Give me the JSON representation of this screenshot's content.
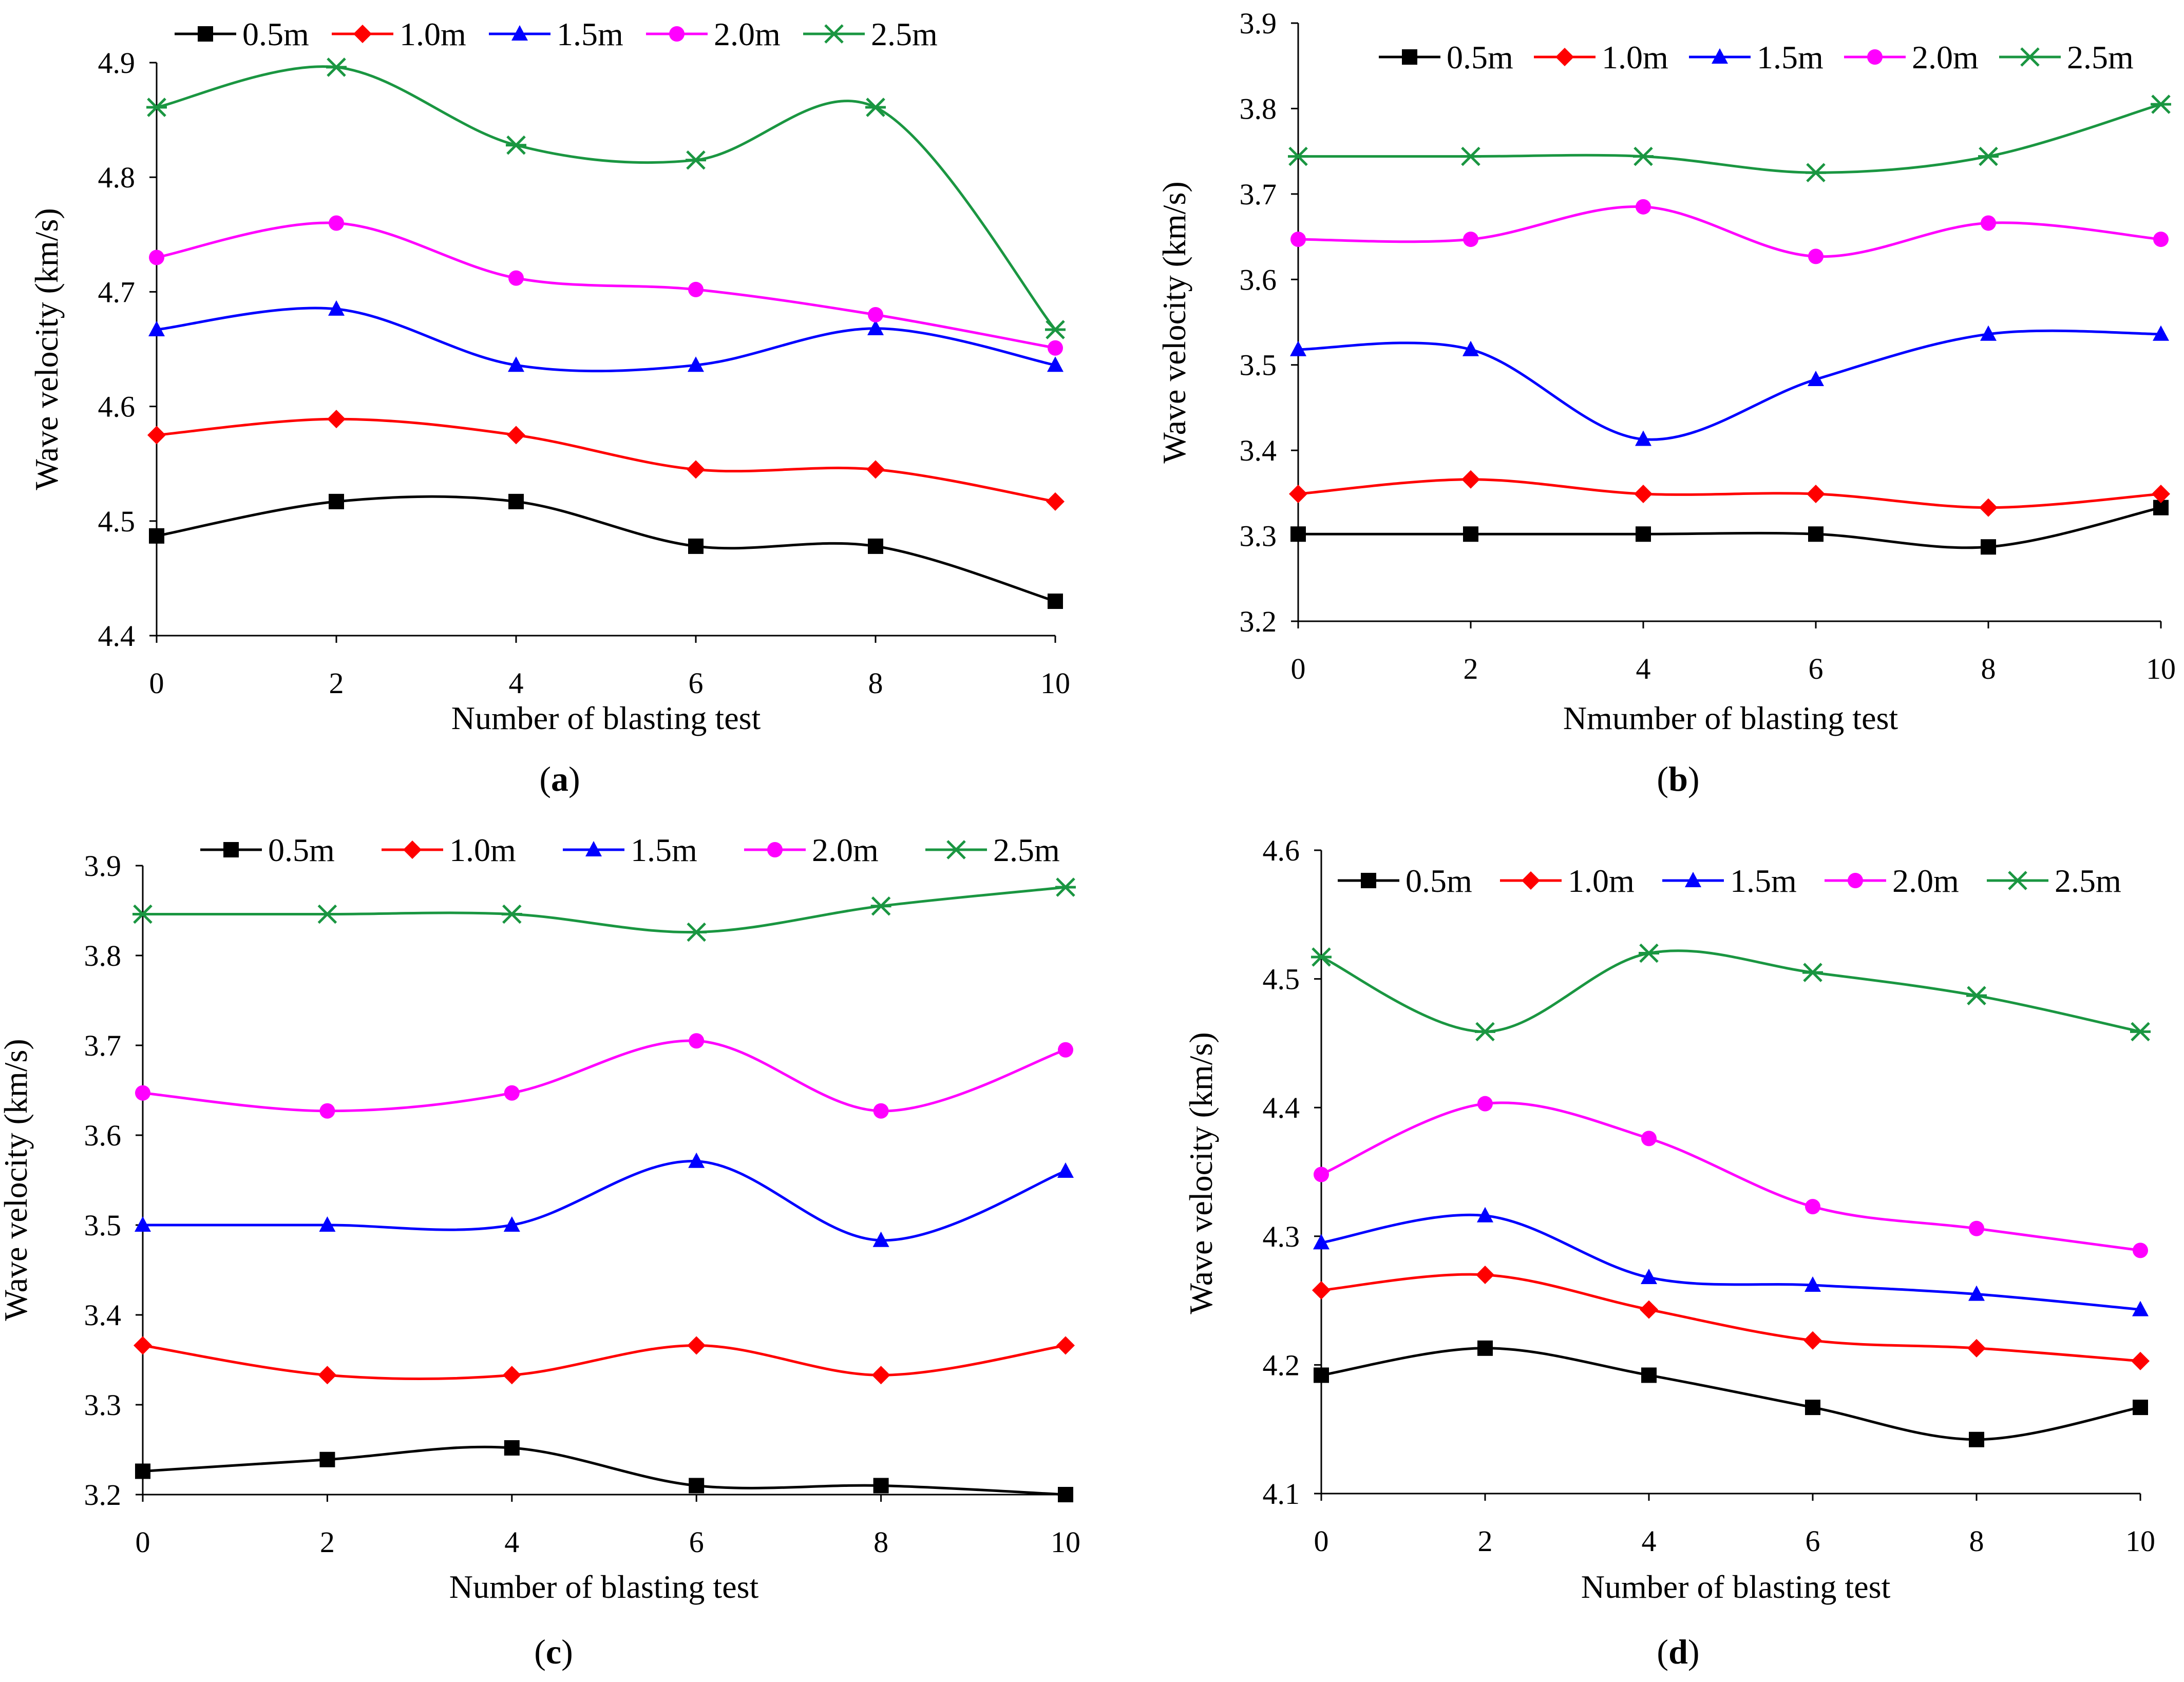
{
  "chart_data": [
    {
      "panel": "a",
      "type": "line",
      "caption": "(a)",
      "caption_letter": "a",
      "xlabel": "Number of blasting test",
      "ylabel": "Wave velocity (km/s)",
      "xlim": [
        0,
        10
      ],
      "ylim": [
        4.4,
        4.9
      ],
      "xticks": [
        0,
        2,
        4,
        6,
        8,
        10
      ],
      "xtick_labels": [
        "0",
        "2",
        "4",
        "6",
        "8",
        "10"
      ],
      "yticks": [
        4.4,
        4.5,
        4.6,
        4.7,
        4.8,
        4.9
      ],
      "ytick_labels": [
        "4.4",
        "4.5",
        "4.6",
        "4.7",
        "4.8",
        "4.9"
      ],
      "x": [
        0,
        2,
        4,
        6,
        8,
        10
      ],
      "legend_position": "top",
      "series": [
        {
          "name": "0.5m",
          "color": "#000000",
          "marker": "square",
          "values": [
            4.487,
            4.517,
            4.517,
            4.478,
            4.478,
            4.43
          ]
        },
        {
          "name": "1.0m",
          "color": "#ff0000",
          "marker": "diamond",
          "values": [
            4.575,
            4.589,
            4.575,
            4.545,
            4.545,
            4.517
          ]
        },
        {
          "name": "1.5m",
          "color": "#0000ff",
          "marker": "triangle",
          "values": [
            4.667,
            4.685,
            4.636,
            4.636,
            4.668,
            4.636
          ]
        },
        {
          "name": "2.0m",
          "color": "#ff00ff",
          "marker": "circle",
          "values": [
            4.73,
            4.76,
            4.712,
            4.702,
            4.68,
            4.651
          ]
        },
        {
          "name": "2.5m",
          "color": "#1a9641",
          "marker": "star",
          "values": [
            4.861,
            4.896,
            4.828,
            4.815,
            4.861,
            4.667
          ]
        }
      ]
    },
    {
      "panel": "b",
      "type": "line",
      "caption": "(b)",
      "caption_letter": "b",
      "xlabel": "Nmumber of blasting test",
      "ylabel": "Wave velocity (km/s)",
      "xlim": [
        0,
        10
      ],
      "ylim": [
        3.2,
        3.9
      ],
      "xticks": [
        0,
        2,
        4,
        6,
        8,
        10
      ],
      "xtick_labels": [
        "0",
        "2",
        "4",
        "6",
        "8",
        "10"
      ],
      "yticks": [
        3.2,
        3.3,
        3.4,
        3.5,
        3.6,
        3.7,
        3.8,
        3.9
      ],
      "ytick_labels": [
        "3.2",
        "3.3",
        "3.4",
        "3.5",
        "3.6",
        "3.7",
        "3.8",
        "3.9"
      ],
      "x": [
        0,
        2,
        4,
        6,
        8,
        10
      ],
      "legend_position": "top",
      "series": [
        {
          "name": "0.5m",
          "color": "#000000",
          "marker": "square",
          "values": [
            3.302,
            3.302,
            3.302,
            3.302,
            3.287,
            3.333
          ]
        },
        {
          "name": "1.0m",
          "color": "#ff0000",
          "marker": "diamond",
          "values": [
            3.349,
            3.366,
            3.349,
            3.349,
            3.333,
            3.349
          ]
        },
        {
          "name": "1.5m",
          "color": "#0000ff",
          "marker": "triangle",
          "values": [
            3.518,
            3.518,
            3.413,
            3.483,
            3.536,
            3.536
          ]
        },
        {
          "name": "2.0m",
          "color": "#ff00ff",
          "marker": "circle",
          "values": [
            3.647,
            3.647,
            3.685,
            3.627,
            3.666,
            3.647
          ]
        },
        {
          "name": "2.5m",
          "color": "#1a9641",
          "marker": "star",
          "values": [
            3.744,
            3.744,
            3.744,
            3.725,
            3.744,
            3.805
          ]
        }
      ]
    },
    {
      "panel": "c",
      "type": "line",
      "caption": "(c)",
      "caption_letter": "c",
      "xlabel": "Number of blasting test",
      "ylabel": "Wave velocity (km/s)",
      "xlim": [
        0,
        10
      ],
      "ylim": [
        3.2,
        3.9
      ],
      "xticks": [
        0,
        2,
        4,
        6,
        8,
        10
      ],
      "xtick_labels": [
        "0",
        "2",
        "4",
        "6",
        "8",
        "10"
      ],
      "yticks": [
        3.2,
        3.3,
        3.4,
        3.5,
        3.6,
        3.7,
        3.8,
        3.9
      ],
      "ytick_labels": [
        "3.2",
        "3.3",
        "3.4",
        "3.5",
        "3.6",
        "3.7",
        "3.8",
        "3.9"
      ],
      "x": [
        0,
        2,
        4,
        6,
        8,
        10
      ],
      "legend_position": "top",
      "series": [
        {
          "name": "0.5m",
          "color": "#000000",
          "marker": "square",
          "values": [
            3.226,
            3.239,
            3.252,
            3.21,
            3.21,
            3.2
          ]
        },
        {
          "name": "1.0m",
          "color": "#ff0000",
          "marker": "diamond",
          "values": [
            3.366,
            3.333,
            3.333,
            3.366,
            3.333,
            3.366
          ]
        },
        {
          "name": "1.5m",
          "color": "#0000ff",
          "marker": "triangle",
          "values": [
            3.5,
            3.5,
            3.5,
            3.571,
            3.483,
            3.56
          ]
        },
        {
          "name": "2.0m",
          "color": "#ff00ff",
          "marker": "circle",
          "values": [
            3.647,
            3.627,
            3.647,
            3.705,
            3.627,
            3.695
          ]
        },
        {
          "name": "2.5m",
          "color": "#1a9641",
          "marker": "star",
          "values": [
            3.846,
            3.846,
            3.846,
            3.826,
            3.855,
            3.876
          ]
        }
      ]
    },
    {
      "panel": "d",
      "type": "line",
      "caption": "(d)",
      "caption_letter": "d",
      "xlabel": "Number of blasting test",
      "ylabel": "Wave velocity (km/s)",
      "xlim": [
        0,
        10
      ],
      "ylim": [
        4.1,
        4.6
      ],
      "xticks": [
        0,
        2,
        4,
        6,
        8,
        10
      ],
      "xtick_labels": [
        "0",
        "2",
        "4",
        "6",
        "8",
        "10"
      ],
      "yticks": [
        4.1,
        4.2,
        4.3,
        4.4,
        4.5,
        4.6
      ],
      "ytick_labels": [
        "4.1",
        "4.2",
        "4.3",
        "4.4",
        "4.5",
        "4.6"
      ],
      "x": [
        0,
        2,
        4,
        6,
        8,
        10
      ],
      "legend_position": "top",
      "series": [
        {
          "name": "0.5m",
          "color": "#000000",
          "marker": "square",
          "values": [
            4.192,
            4.213,
            4.192,
            4.167,
            4.142,
            4.167
          ]
        },
        {
          "name": "1.0m",
          "color": "#ff0000",
          "marker": "diamond",
          "values": [
            4.258,
            4.27,
            4.243,
            4.219,
            4.213,
            4.203
          ]
        },
        {
          "name": "1.5m",
          "color": "#0000ff",
          "marker": "triangle",
          "values": [
            4.295,
            4.316,
            4.268,
            4.262,
            4.255,
            4.243
          ]
        },
        {
          "name": "2.0m",
          "color": "#ff00ff",
          "marker": "circle",
          "values": [
            4.348,
            4.403,
            4.376,
            4.323,
            4.306,
            4.289
          ]
        },
        {
          "name": "2.5m",
          "color": "#1a9641",
          "marker": "star",
          "values": [
            4.517,
            4.459,
            4.52,
            4.505,
            4.487,
            4.459
          ]
        }
      ]
    }
  ]
}
